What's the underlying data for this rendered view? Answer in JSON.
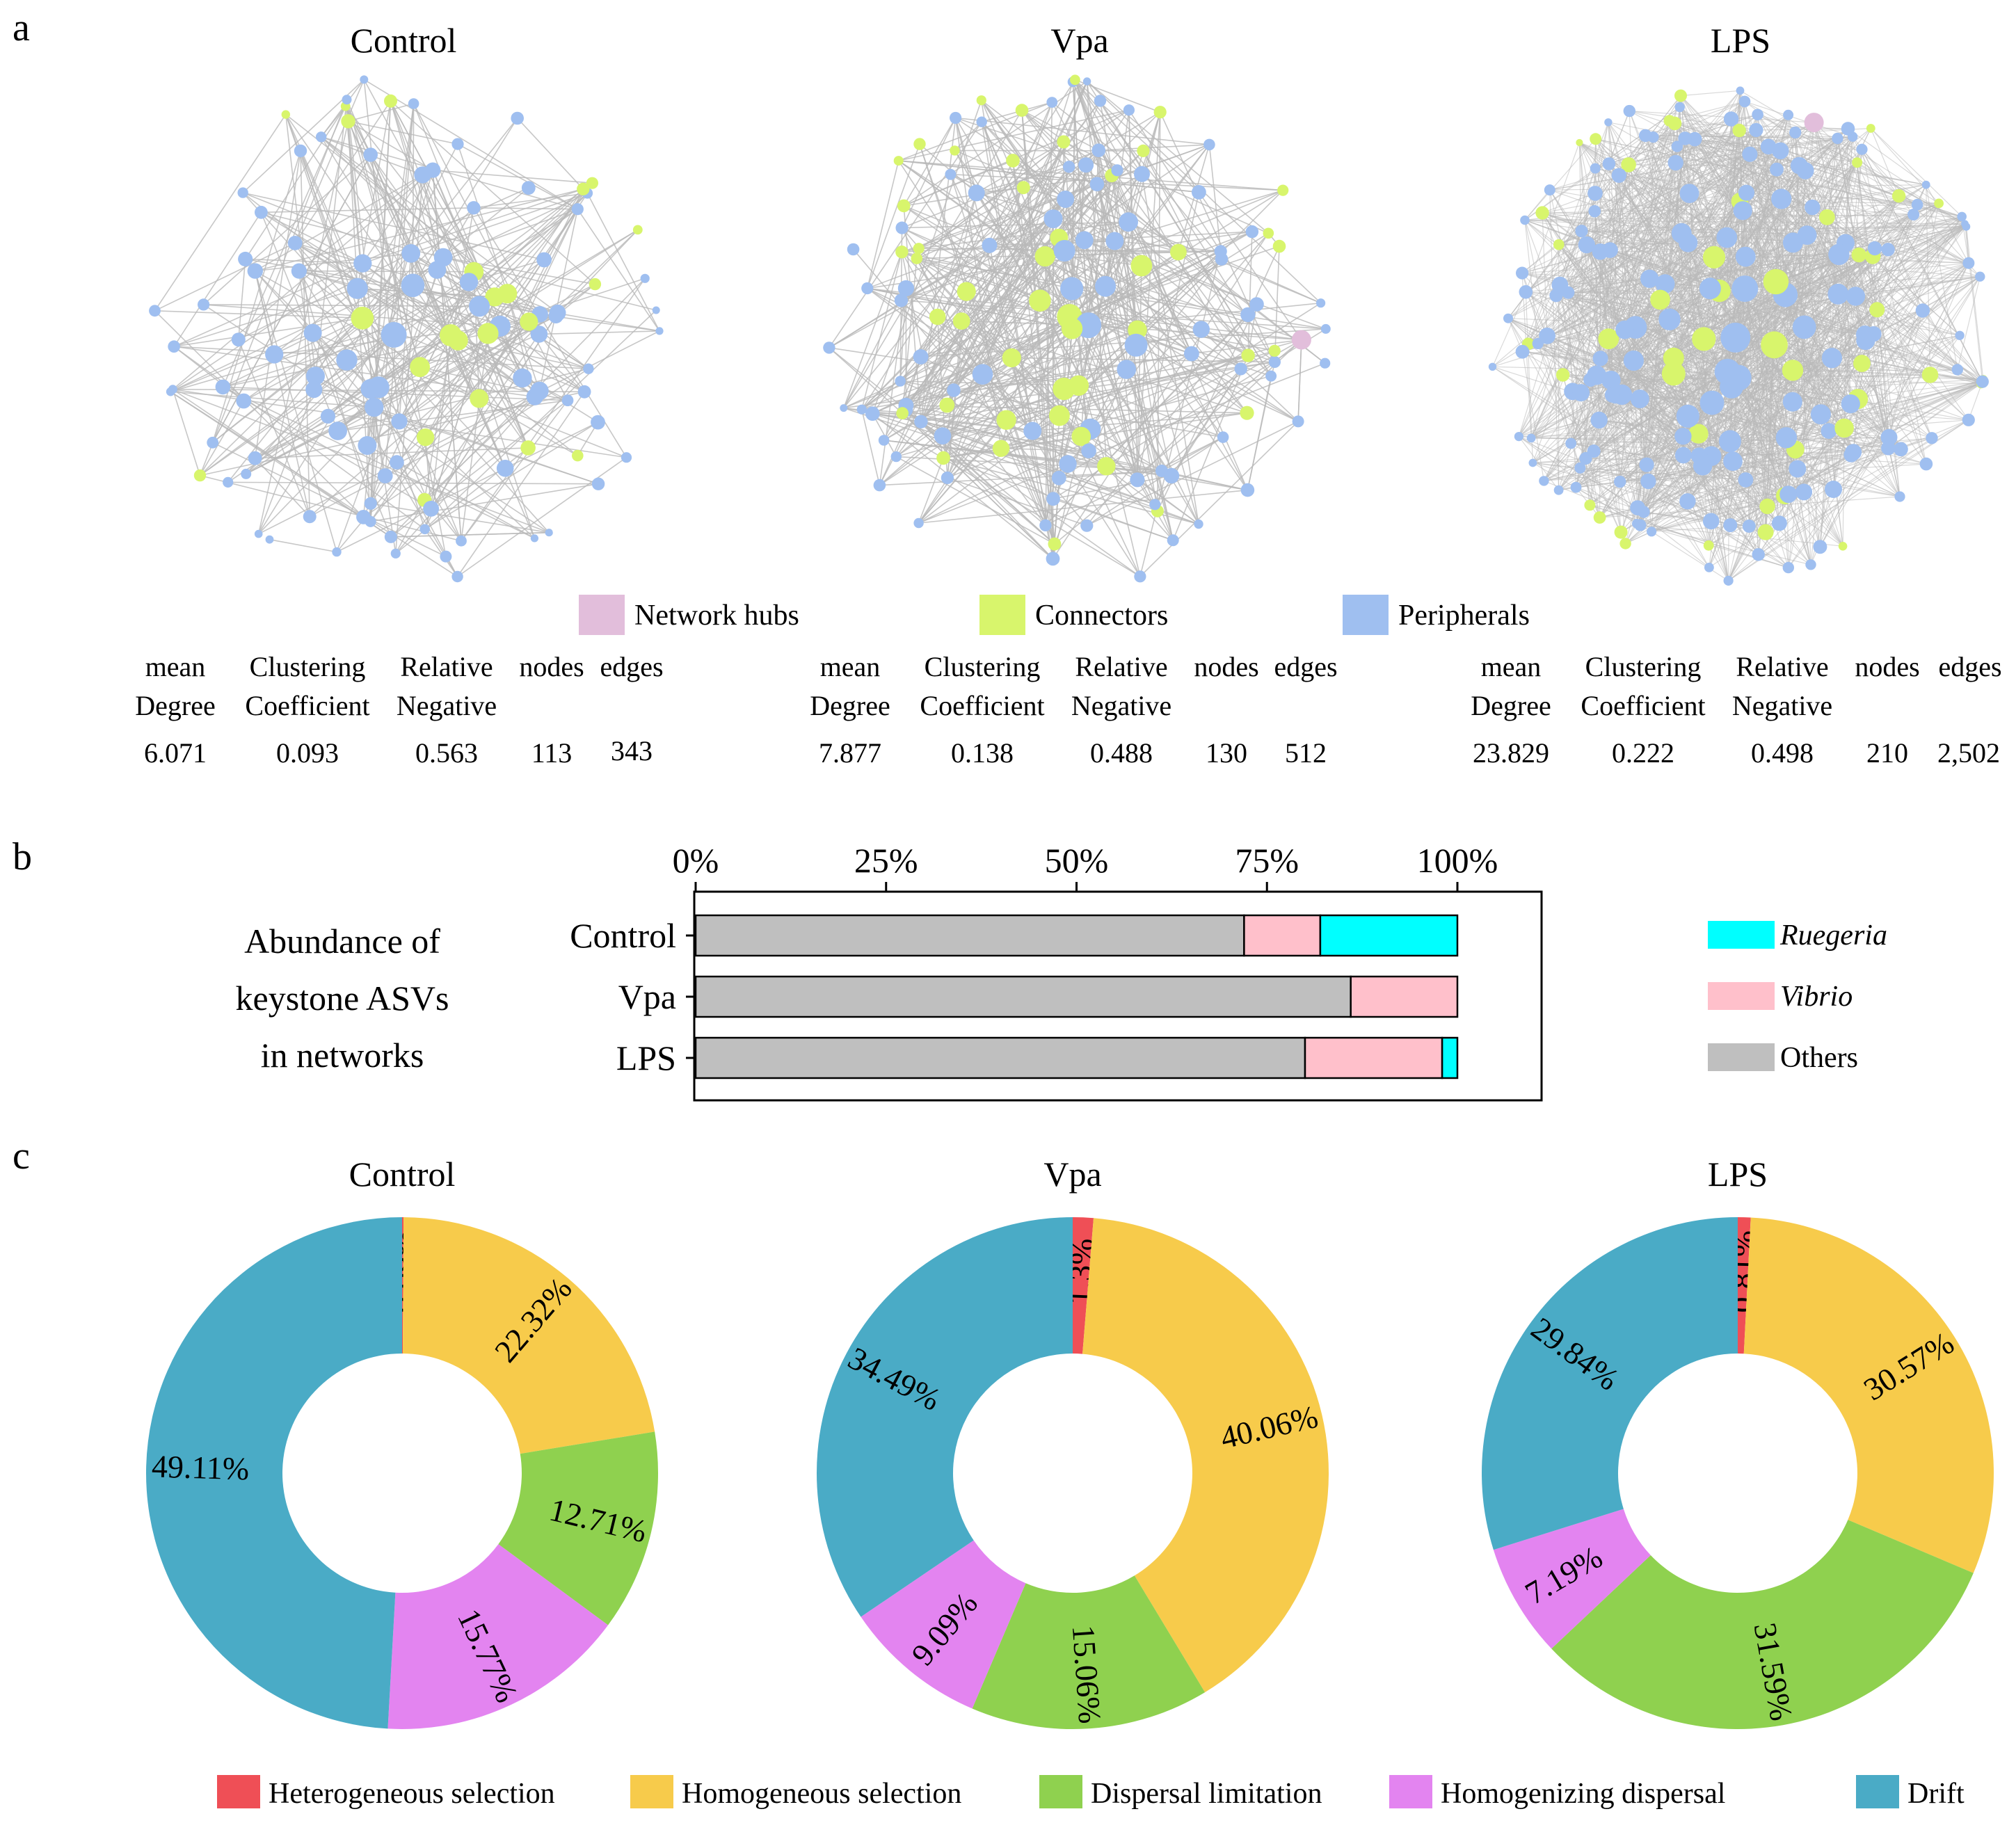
{
  "panels": {
    "a": "a",
    "b": "b",
    "c": "c"
  },
  "network": {
    "legend": [
      {
        "label": "Network hubs",
        "color": "#e2bedb"
      },
      {
        "label": "Connectors",
        "color": "#d8f56c"
      },
      {
        "label": "Peripherals",
        "color": "#9fbff0"
      }
    ],
    "stat_headers": [
      [
        "mean",
        "Degree"
      ],
      [
        "Clustering",
        "Coefficient"
      ],
      [
        "Relative",
        "Negative"
      ],
      [
        "nodes",
        ""
      ],
      [
        "edges",
        ""
      ]
    ],
    "groups": [
      {
        "title": "Control",
        "stats": [
          "6.071",
          "0.093",
          "0.563",
          "113",
          "343"
        ],
        "hubs": 0
      },
      {
        "title": "Vpa",
        "stats": [
          "7.877",
          "0.138",
          "0.488",
          "130",
          "512"
        ],
        "hubs": 1
      },
      {
        "title": "LPS",
        "stats": [
          "23.829",
          "0.222",
          "0.498",
          "210",
          "2,502"
        ],
        "hubs": 1
      }
    ]
  },
  "chart_data": [
    {
      "type": "bar",
      "orientation": "horizontal",
      "stacked": true,
      "title": [
        "Abundance of",
        "keystone ASVs",
        "in networks"
      ],
      "categories": [
        "Control",
        "Vpa",
        "LPS"
      ],
      "x_ticks": [
        "0%",
        "25%",
        "50%",
        "75%",
        "100%"
      ],
      "xlim": [
        0,
        100
      ],
      "series": [
        {
          "name": "Others",
          "color": "#bfbfbf",
          "values": [
            72,
            86,
            80
          ]
        },
        {
          "name": "Vibrio",
          "color": "#ffc0cb",
          "values": [
            10,
            14,
            18
          ]
        },
        {
          "name": "Ruegeria",
          "color": "#00ffff",
          "values": [
            18,
            0,
            2
          ]
        }
      ],
      "legend_order": [
        "Ruegeria",
        "Vibrio",
        "Others"
      ]
    },
    {
      "type": "pie",
      "donut": true,
      "categories": [
        "Heterogeneous selection",
        "Homogeneous selection",
        "Dispersal limitation",
        "Homogenizing dispersal",
        "Drift"
      ],
      "colors": [
        "#ef4f56",
        "#f7cb4b",
        "#8fd14f",
        "#e384f0",
        "#4aabc6"
      ],
      "charts": [
        {
          "title": "Control",
          "values": [
            0.09,
            22.32,
            12.71,
            15.77,
            49.11
          ],
          "labels": [
            "0.09%",
            "22.32%",
            "12.71%",
            "15.77%",
            "49.11%"
          ]
        },
        {
          "title": "Vpa",
          "values": [
            1.3,
            40.06,
            15.06,
            9.09,
            34.49
          ],
          "labels": [
            "1.3%",
            "40.06%",
            "15.06%",
            "9.09%",
            "34.49%"
          ]
        },
        {
          "title": "LPS",
          "values": [
            0.81,
            30.57,
            31.59,
            7.19,
            29.84
          ],
          "labels": [
            "0.81%",
            "30.57%",
            "31.59%",
            "7.19%",
            "29.84%"
          ]
        }
      ]
    }
  ]
}
